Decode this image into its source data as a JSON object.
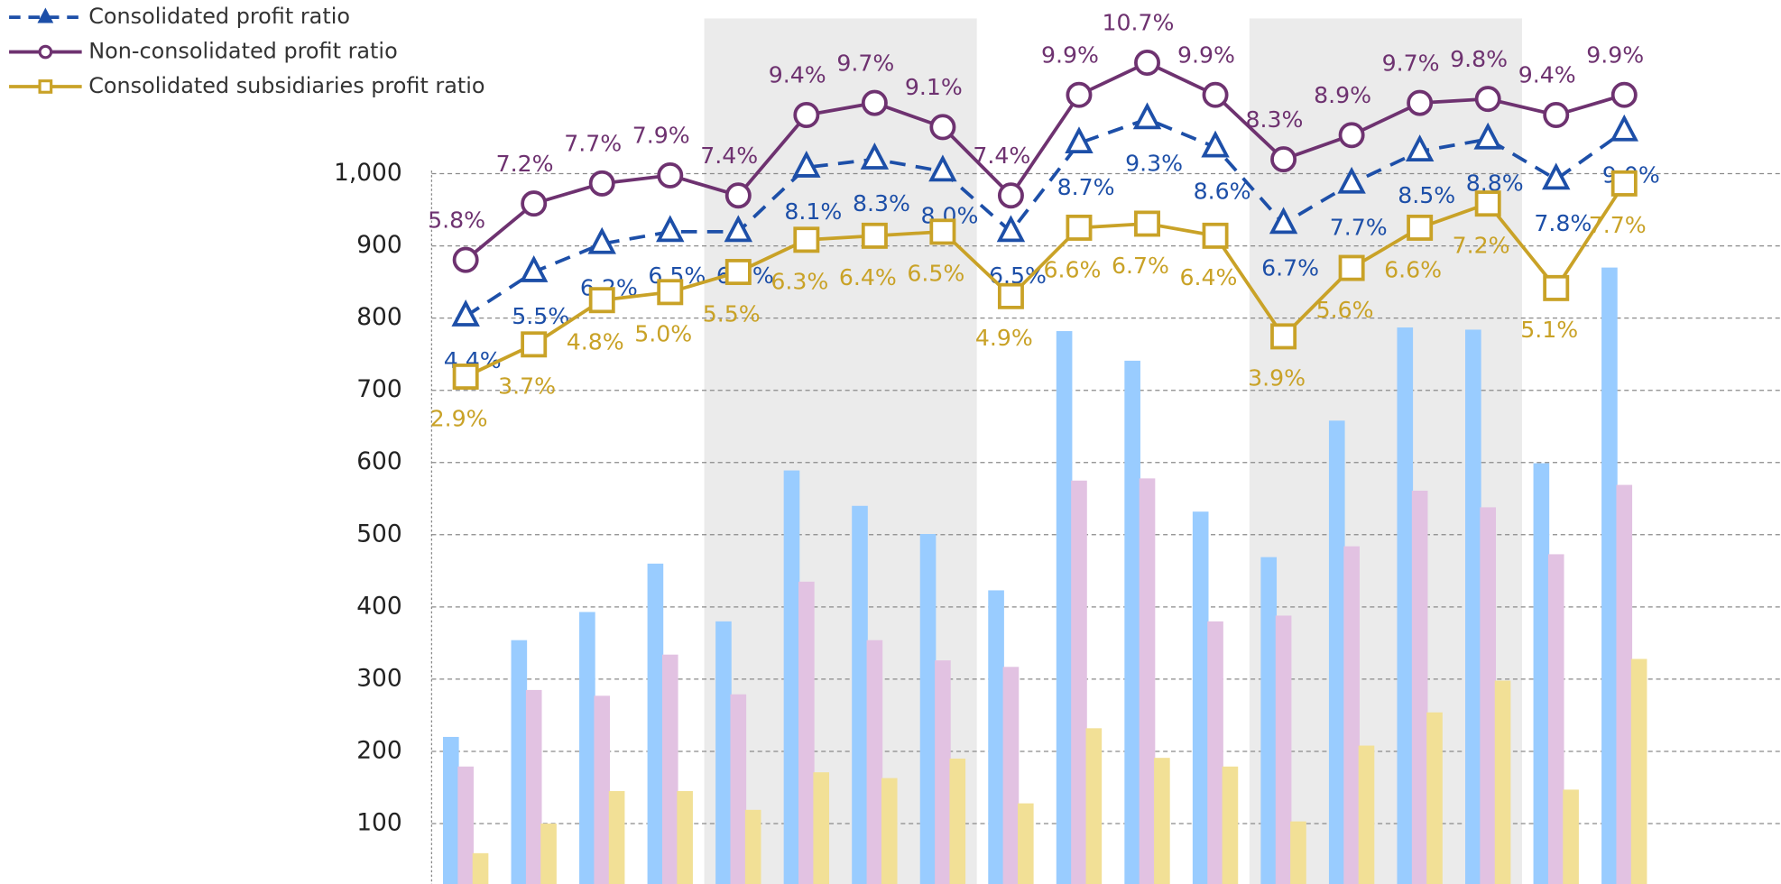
{
  "chart_data": {
    "type": "bar",
    "categories": [
      null,
      null,
      null,
      null,
      null,
      null,
      null,
      null,
      null,
      null,
      null,
      null,
      null,
      null,
      null,
      null,
      null,
      null
    ],
    "ylim": [
      0,
      1215
    ],
    "yticks": [
      0,
      100,
      200,
      300,
      400,
      500,
      600,
      700,
      800,
      900,
      {
        "value": 1000,
        "label": "1,000"
      }
    ],
    "y2lim": [
      -10,
      11.8
    ],
    "grid": true,
    "legend": "top-left",
    "series": [
      {
        "type": "bar",
        "color": "#99ccff",
        "values": [
          220,
          354,
          393,
          460,
          380,
          589,
          540,
          501,
          423,
          782,
          741,
          532,
          469,
          658,
          787,
          784,
          599,
          870
        ]
      },
      {
        "type": "bar",
        "color": "#e2c2e2",
        "values": [
          179,
          285,
          277,
          334,
          279,
          435,
          354,
          326,
          317,
          575,
          578,
          380,
          388,
          484,
          561,
          538,
          473,
          569
        ]
      },
      {
        "type": "bar",
        "color": "#f2e096",
        "values": [
          59,
          100,
          145,
          145,
          119,
          171,
          163,
          190,
          128,
          232,
          191,
          179,
          103,
          208,
          254,
          298,
          147,
          328
        ]
      },
      {
        "type": "line",
        "name": "Consolidated profit ratio",
        "axis": "y2",
        "color": "#1d4fa8",
        "dash": true,
        "marker": "triangle",
        "values": [
          4.4,
          5.5,
          6.2,
          6.5,
          6.5,
          8.1,
          8.3,
          8.0,
          6.5,
          8.7,
          9.3,
          8.6,
          6.7,
          7.7,
          8.5,
          8.8,
          7.8,
          9.0
        ],
        "value_labels": [
          "4.4%",
          "5.5%",
          "6.2%",
          "6.5%",
          "6.5%",
          "8.1%",
          "8.3%",
          "8.0%",
          "6.5%",
          "8.7%",
          "9.3%",
          "8.6%",
          "6.7%",
          "7.7%",
          "8.5%",
          "8.8%",
          "7.8%",
          "9.0%"
        ]
      },
      {
        "type": "line",
        "name": "Non-consolidated profit ratio",
        "axis": "y2",
        "color": "#6e3270",
        "dash": false,
        "marker": "circle",
        "values": [
          5.8,
          7.2,
          7.7,
          7.9,
          7.4,
          9.4,
          9.7,
          9.1,
          7.4,
          9.9,
          10.7,
          9.9,
          8.3,
          8.9,
          9.7,
          9.8,
          9.4,
          9.9
        ],
        "value_labels": [
          "5.8%",
          "7.2%",
          "7.7%",
          "7.9%",
          "7.4%",
          "9.4%",
          "9.7%",
          "9.1%",
          "7.4%",
          "9.9%",
          "10.7%",
          "9.9%",
          "8.3%",
          "8.9%",
          "9.7%",
          "9.8%",
          "9.4%",
          "9.9%"
        ]
      },
      {
        "type": "line",
        "name": "Consolidated subsidiaries profit ratio",
        "axis": "y2",
        "color": "#c9a227",
        "dash": false,
        "marker": "square",
        "values": [
          2.9,
          3.7,
          4.8,
          5.0,
          5.5,
          6.3,
          6.4,
          6.5,
          4.9,
          6.6,
          6.7,
          6.4,
          3.9,
          5.6,
          6.6,
          7.2,
          5.1,
          7.7
        ],
        "value_labels": [
          "2.9%",
          "3.7%",
          "4.8%",
          "5.0%",
          "5.5%",
          "6.3%",
          "6.4%",
          "6.5%",
          "4.9%",
          "6.6%",
          "6.7%",
          "6.4%",
          "3.9%",
          "5.6%",
          "6.6%",
          "7.2%",
          "5.1%",
          "7.7%"
        ]
      }
    ]
  }
}
